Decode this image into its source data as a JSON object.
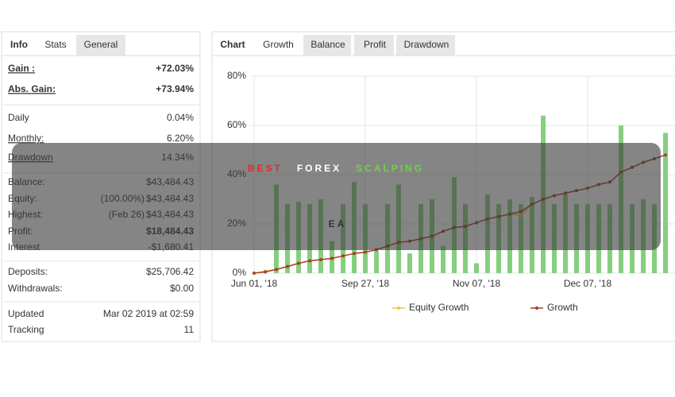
{
  "stats_panel": {
    "tabs": [
      "Info",
      "Stats",
      "General"
    ],
    "rows": [
      [
        {
          "label": "Gain :",
          "value": "+72.03%"
        },
        {
          "label": "Abs. Gain:",
          "value": "+73.94%"
        }
      ],
      [
        {
          "label": "Daily",
          "value": "0.04%"
        },
        {
          "label": "Monthly:",
          "value": "6.20%"
        },
        {
          "label": "Drawdown",
          "value": "14.34%"
        }
      ],
      [
        {
          "label": "Balance:",
          "value": "$43,484.43"
        },
        {
          "label": "Equity:",
          "note": "(100.00%)",
          "value": "$43,484.43"
        },
        {
          "label": "Highest:",
          "note": "(Feb 26)",
          "value": "$43,484.43"
        },
        {
          "label": "Profit:",
          "value": "$18,484.43"
        },
        {
          "label": "Interest",
          "value": "-$1,680.41"
        }
      ],
      [
        {
          "label": "Deposits:",
          "value": "$25,706.42"
        },
        {
          "label": "Withdrawals:",
          "value": "$0.00"
        }
      ],
      [
        {
          "label": "Updated",
          "value": "Mar 02 2019 at 02:59"
        },
        {
          "label": "Tracking",
          "value": "11"
        }
      ]
    ]
  },
  "chart_panel": {
    "tabs": [
      "Chart",
      "Growth",
      "Balance",
      "Profit",
      "Drawdown"
    ]
  },
  "chart_data": {
    "type": "line",
    "categories": [
      "Jun 01, '18",
      null,
      null,
      null,
      null,
      null,
      null,
      null,
      null,
      null,
      "Sep 27, '18",
      null,
      null,
      null,
      null,
      null,
      null,
      null,
      null,
      null,
      "Nov 07, '18",
      null,
      null,
      null,
      null,
      null,
      null,
      null,
      null,
      null,
      "Dec 07, '18",
      null,
      null,
      null,
      null,
      null,
      null,
      null
    ],
    "ylim": [
      0,
      80
    ],
    "yticks": [
      {
        "value": 0,
        "label": "0%"
      },
      {
        "value": 20,
        "label": "20%"
      },
      {
        "value": 40,
        "label": "40%"
      },
      {
        "value": 60,
        "label": "60%"
      },
      {
        "value": 80,
        "label": "80%"
      }
    ],
    "grid": true,
    "bars": {
      "color": "#86cf7f",
      "values": [
        0,
        0,
        36,
        28,
        29,
        28,
        30,
        13,
        28,
        37,
        28,
        9,
        28,
        36,
        8,
        28,
        30,
        11,
        39,
        28,
        4,
        32,
        28,
        30,
        28,
        31,
        64,
        28,
        32,
        28,
        28,
        28,
        28,
        60,
        28,
        30,
        28,
        57
      ]
    },
    "series": [
      {
        "name": "Equity Growth",
        "color": "#e8c84a",
        "values": [
          0,
          0.8,
          1.5,
          2.7,
          4,
          5,
          5.5,
          6,
          7,
          8,
          8.5,
          9.5,
          11,
          12.5,
          13,
          14,
          15,
          17,
          18.5,
          19,
          20.5,
          22,
          23,
          24,
          23.5,
          28,
          30,
          31.5,
          32.5,
          33.5,
          34.5,
          36,
          37,
          41,
          43,
          45,
          46.5,
          48
        ]
      },
      {
        "name": "Growth",
        "color": "#a0412f",
        "values": [
          0,
          0.5,
          1.5,
          2.7,
          4,
          5,
          5.5,
          6,
          7,
          8,
          8.5,
          9.5,
          11,
          12.5,
          13,
          14,
          15,
          17,
          18.5,
          19,
          20.5,
          22,
          23,
          24,
          25,
          28,
          30,
          31.5,
          32.5,
          33.5,
          34.5,
          36,
          37,
          41,
          43,
          45,
          46.5,
          48
        ]
      }
    ],
    "legend": "bottom"
  },
  "overlay": {
    "line1": [
      {
        "text": "BEST",
        "color": "#e8262a"
      },
      {
        "text": "FOREX",
        "color": "#ffffff"
      },
      {
        "text": "SCALPING",
        "color": "#6fd04f"
      }
    ],
    "line2": "EA"
  }
}
